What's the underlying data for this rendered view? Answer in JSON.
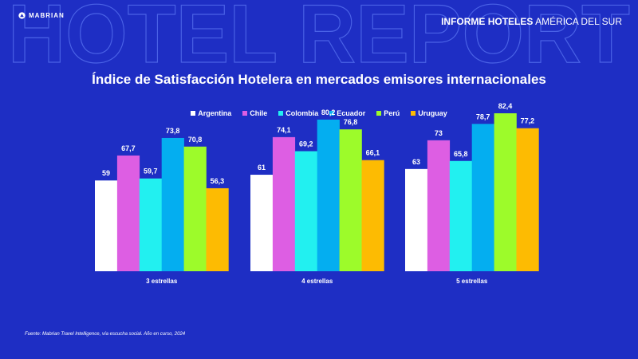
{
  "background_word": "HOTEL REPORT",
  "logo": {
    "icon": "mabrian-logo-icon",
    "text": "MABRIAN"
  },
  "header": {
    "strong": "INFORME HOTELES",
    "light": "AMÉRICA DEL SUR"
  },
  "footnote": "Fuente: Mabrian Travel Intelligence, vía escucha social. Año en curso, 2024",
  "chart_data": {
    "type": "bar",
    "title": "Índice de Satisfacción Hotelera en mercados emisores internacionales",
    "xlabel": "",
    "ylabel": "",
    "ylim": [
      0,
      100
    ],
    "grid": false,
    "legend_position": "top-center",
    "categories": [
      "3 estrellas",
      "4 estrellas",
      "5 estrellas"
    ],
    "series": [
      {
        "name": "Argentina",
        "color": "#ffffff",
        "values": [
          59,
          61,
          63
        ],
        "labels": [
          "59",
          "61",
          "63"
        ]
      },
      {
        "name": "Chile",
        "color": "#dd5ee3",
        "values": [
          67.7,
          74.1,
          73
        ],
        "labels": [
          "67,7",
          "74,1",
          "73"
        ]
      },
      {
        "name": "Colombia",
        "color": "#22f0f0",
        "values": [
          59.7,
          69.2,
          65.8
        ],
        "labels": [
          "59,7",
          "69,2",
          "65,8"
        ]
      },
      {
        "name": "Ecuador",
        "color": "#04aef0",
        "values": [
          73.8,
          80.2,
          78.7
        ],
        "labels": [
          "73,8",
          "80,2",
          "78,7"
        ]
      },
      {
        "name": "Perú",
        "color": "#9dfb2a",
        "values": [
          70.8,
          76.8,
          82.4
        ],
        "labels": [
          "70,8",
          "76,8",
          "82,4"
        ]
      },
      {
        "name": "Uruguay",
        "color": "#fdbb02",
        "values": [
          56.3,
          66.1,
          77.2
        ],
        "labels": [
          "56,3",
          "66,1",
          "77,2"
        ]
      }
    ]
  }
}
